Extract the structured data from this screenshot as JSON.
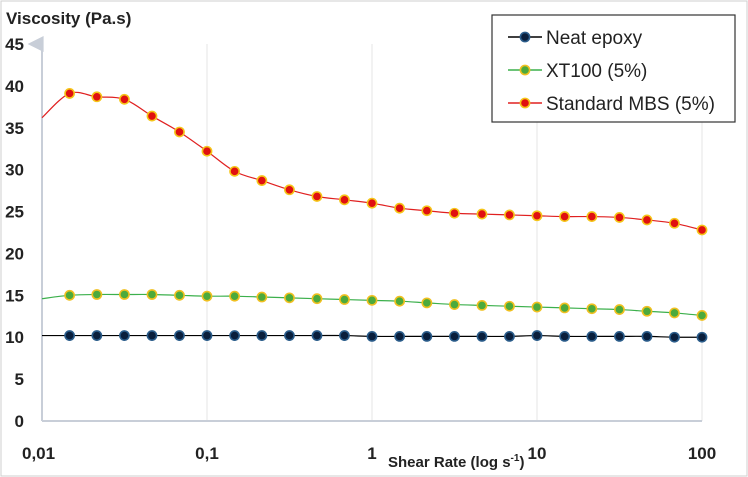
{
  "chart_data": {
    "type": "line",
    "ylabel": "Viscosity (Pa.s)",
    "xlabel": "Shear Rate (log s",
    "xlabel_superscript": "-1",
    "xlabel_close": ")",
    "x_scale": "log",
    "xlim": [
      0.01,
      100
    ],
    "ylim": [
      0,
      45
    ],
    "x_tick_labels": [
      "0,01",
      "0,1",
      "1",
      "10",
      "100"
    ],
    "x_tick_values": [
      0.01,
      0.1,
      1,
      10,
      100
    ],
    "y_ticks": [
      0,
      5,
      10,
      15,
      20,
      25,
      30,
      35,
      40,
      45
    ],
    "grid": "vertical",
    "legend_position": "top-right",
    "x": [
      0.01,
      0.0147,
      0.0215,
      0.0316,
      0.0464,
      0.0681,
      0.1,
      0.147,
      0.215,
      0.316,
      0.464,
      0.681,
      1,
      1.47,
      2.15,
      3.16,
      4.64,
      6.81,
      10,
      14.7,
      21.5,
      31.6,
      46.4,
      68.1,
      100
    ],
    "series": [
      {
        "name": "Neat epoxy",
        "color": "#000000",
        "marker_fill": "#0a1f3c",
        "marker_edge": "#2a5c8a",
        "values": [
          10.2,
          10.2,
          10.2,
          10.2,
          10.2,
          10.2,
          10.2,
          10.2,
          10.2,
          10.2,
          10.2,
          10.2,
          10.1,
          10.1,
          10.1,
          10.1,
          10.1,
          10.1,
          10.2,
          10.1,
          10.1,
          10.1,
          10.1,
          10.0,
          10.0
        ]
      },
      {
        "name": "XT100 (5%)",
        "color": "#3cb04c",
        "marker_fill": "#4caa3c",
        "marker_edge": "#f0c020",
        "values": [
          14.6,
          15.0,
          15.1,
          15.1,
          15.1,
          15.0,
          14.9,
          14.9,
          14.8,
          14.7,
          14.6,
          14.5,
          14.4,
          14.3,
          14.1,
          13.9,
          13.8,
          13.7,
          13.6,
          13.5,
          13.4,
          13.3,
          13.1,
          12.9,
          12.6
        ]
      },
      {
        "name": "Standard MBS (5%)",
        "color": "#e02020",
        "marker_fill": "#e01010",
        "marker_edge": "#f5c518",
        "values": [
          36.2,
          39.1,
          38.7,
          38.4,
          36.4,
          34.5,
          32.2,
          29.8,
          28.7,
          27.6,
          26.8,
          26.4,
          26.0,
          25.4,
          25.1,
          24.8,
          24.7,
          24.6,
          24.5,
          24.4,
          24.4,
          24.3,
          24.0,
          23.6,
          22.8
        ]
      }
    ]
  }
}
